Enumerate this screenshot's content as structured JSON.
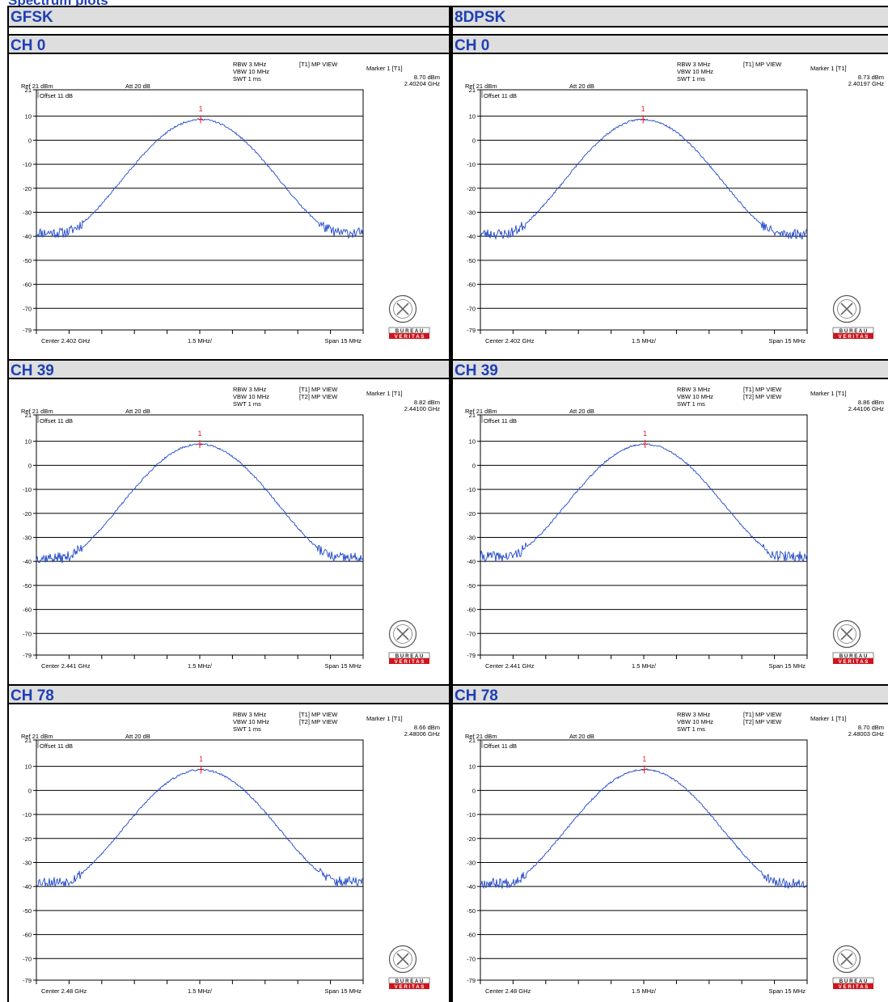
{
  "page": {
    "cut_title": "Spectrum plots",
    "columns": [
      "GFSK",
      "8DPSK"
    ]
  },
  "chart_data": [
    {
      "type": "line",
      "modulation": "GFSK",
      "channel": "CH 0",
      "settings": {
        "rbw": "RBW 3 MHz",
        "vbw": "VBW 10 MHz",
        "swt": "SWT 1 ms",
        "ref": "Ref 21 dBm",
        "att": "Att 20 dB",
        "offset": "Offset 11 dB",
        "traces": [
          "[T1] MP VIEW"
        ]
      },
      "marker": {
        "label": "Marker 1 [T1]",
        "level": "8.70 dBm",
        "freq": "2.40204 GHz",
        "number": "1",
        "value_dbm": 8.7,
        "offset_mhz": 0.04
      },
      "x_axis": {
        "center": "Center 2.402 GHz",
        "div": "1.5 MHz/",
        "span": "Span 15 MHz",
        "range_mhz": [
          -7.5,
          7.5
        ]
      },
      "y_axis": {
        "ticks": [
          21,
          10,
          0,
          -10,
          -20,
          -30,
          -40,
          -50,
          -60,
          -70,
          -79
        ],
        "range_dbm": [
          -79,
          21
        ]
      },
      "trace": {
        "peak_dbm": 8.7,
        "floor_dbm": -38.5,
        "edge_mhz": 6.3,
        "seed": 11
      },
      "logo": [
        "B U R E A U",
        "V E R I T A S"
      ]
    },
    {
      "type": "line",
      "modulation": "8DPSK",
      "channel": "CH 0",
      "settings": {
        "rbw": "RBW 3 MHz",
        "vbw": "VBW 10 MHz",
        "swt": "SWT 1 ms",
        "ref": "Ref 21 dBm",
        "att": "Att 20 dB",
        "offset": "Offset 11 dB",
        "traces": [
          "[T1] MP VIEW"
        ]
      },
      "marker": {
        "label": "Marker 1 [T1]",
        "level": "8.73 dBm",
        "freq": "2.40197 GHz",
        "number": "1",
        "value_dbm": 8.73,
        "offset_mhz": -0.03
      },
      "x_axis": {
        "center": "Center 2.402 GHz",
        "div": "1.5 MHz/",
        "span": "Span 15 MHz",
        "range_mhz": [
          -7.5,
          7.5
        ]
      },
      "y_axis": {
        "ticks": [
          21,
          10,
          0,
          -10,
          -20,
          -30,
          -40,
          -50,
          -60,
          -70,
          -79
        ],
        "range_dbm": [
          -79,
          21
        ]
      },
      "trace": {
        "peak_dbm": 8.7,
        "floor_dbm": -39.0,
        "edge_mhz": 6.3,
        "seed": 23
      },
      "logo": [
        "B U R E A U",
        "V E R I T A S"
      ]
    },
    {
      "type": "line",
      "modulation": "GFSK",
      "channel": "CH 39",
      "settings": {
        "rbw": "RBW 3 MHz",
        "vbw": "VBW 10 MHz",
        "swt": "SWT 1 ms",
        "ref": "Ref 21 dBm",
        "att": "Att 20 dB",
        "offset": "Offset 11 dB",
        "traces": [
          "[T1] MP VIEW",
          "[T2] MP VIEW"
        ]
      },
      "marker": {
        "label": "Marker 1 [T1]",
        "level": "8.82 dBm",
        "freq": "2.44100 GHz",
        "number": "1",
        "value_dbm": 8.82,
        "offset_mhz": 0.0
      },
      "x_axis": {
        "center": "Center 2.441 GHz",
        "div": "1.5 MHz/",
        "span": "Span 15 MHz",
        "range_mhz": [
          -7.5,
          7.5
        ]
      },
      "y_axis": {
        "ticks": [
          21,
          10,
          0,
          -10,
          -20,
          -30,
          -40,
          -50,
          -60,
          -70,
          -79
        ],
        "range_dbm": [
          -79,
          21
        ]
      },
      "trace": {
        "peak_dbm": 8.8,
        "floor_dbm": -38.5,
        "edge_mhz": 6.3,
        "seed": 37
      },
      "logo": [
        "B U R E A U",
        "V E R I T A S"
      ]
    },
    {
      "type": "line",
      "modulation": "8DPSK",
      "channel": "CH 39",
      "settings": {
        "rbw": "RBW 3 MHz",
        "vbw": "VBW 10 MHz",
        "swt": "SWT 1 ms",
        "ref": "Ref 21 dBm",
        "att": "Att 20 dB",
        "offset": "Offset 11 dB",
        "traces": [
          "[T1] MP VIEW",
          "[T2] MP VIEW"
        ]
      },
      "marker": {
        "label": "Marker 1 [T1]",
        "level": "8.86 dBm",
        "freq": "2.44106 GHz",
        "number": "1",
        "value_dbm": 8.86,
        "offset_mhz": 0.06
      },
      "x_axis": {
        "center": "Center 2.441 GHz",
        "div": "1.5 MHz/",
        "span": "Span 15 MHz",
        "range_mhz": [
          -7.5,
          7.5
        ]
      },
      "y_axis": {
        "ticks": [
          21,
          10,
          0,
          -10,
          -20,
          -30,
          -40,
          -50,
          -60,
          -70,
          -79
        ],
        "range_dbm": [
          -79,
          21
        ]
      },
      "trace": {
        "peak_dbm": 8.8,
        "floor_dbm": -38.0,
        "edge_mhz": 6.3,
        "seed": 41
      },
      "logo": [
        "B U R E A U",
        "V E R I T A S"
      ]
    },
    {
      "type": "line",
      "modulation": "GFSK",
      "channel": "CH 78",
      "settings": {
        "rbw": "RBW 3 MHz",
        "vbw": "VBW 10 MHz",
        "swt": "SWT 1 ms",
        "ref": "Ref 21 dBm",
        "att": "Att 20 dB",
        "offset": "Offset 11 dB",
        "traces": [
          "[T1] MP VIEW",
          "[T2] MP VIEW"
        ]
      },
      "marker": {
        "label": "Marker 1 [T1]",
        "level": "8.66 dBm",
        "freq": "2.48006 GHz",
        "number": "1",
        "value_dbm": 8.66,
        "offset_mhz": 0.06
      },
      "x_axis": {
        "center": "Center 2.48 GHz",
        "div": "1.5 MHz/",
        "span": "Span 15 MHz",
        "range_mhz": [
          -7.5,
          7.5
        ]
      },
      "y_axis": {
        "ticks": [
          21,
          10,
          0,
          -10,
          -20,
          -30,
          -40,
          -50,
          -60,
          -70,
          -79
        ],
        "range_dbm": [
          -79,
          21
        ]
      },
      "trace": {
        "peak_dbm": 8.6,
        "floor_dbm": -38.0,
        "edge_mhz": 6.3,
        "seed": 53
      },
      "logo": [
        "B U R E A U",
        "V E R I T A S"
      ]
    },
    {
      "type": "line",
      "modulation": "8DPSK",
      "channel": "CH 78",
      "settings": {
        "rbw": "RBW 3 MHz",
        "vbw": "VBW 10 MHz",
        "swt": "SWT 1 ms",
        "ref": "Ref 21 dBm",
        "att": "Att 20 dB",
        "offset": "Offset 11 dB",
        "traces": [
          "[T1] MP VIEW",
          "[T2] MP VIEW"
        ]
      },
      "marker": {
        "label": "Marker 1 [T1]",
        "level": "8.70 dBm",
        "freq": "2.48003 GHz",
        "number": "1",
        "value_dbm": 8.7,
        "offset_mhz": 0.03
      },
      "x_axis": {
        "center": "Center 2.48 GHz",
        "div": "1.5 MHz/",
        "span": "Span 15 MHz",
        "range_mhz": [
          -7.5,
          7.5
        ]
      },
      "y_axis": {
        "ticks": [
          21,
          10,
          0,
          -10,
          -20,
          -30,
          -40,
          -50,
          -60,
          -70,
          -79
        ],
        "range_dbm": [
          -79,
          21
        ]
      },
      "trace": {
        "peak_dbm": 8.7,
        "floor_dbm": -38.5,
        "edge_mhz": 6.3,
        "seed": 67
      },
      "logo": [
        "B U R E A U",
        "V E R I T A S"
      ]
    }
  ]
}
